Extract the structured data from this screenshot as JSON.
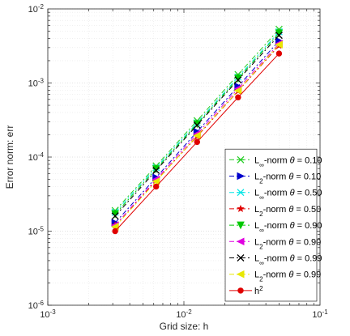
{
  "chart_data": {
    "type": "line",
    "xscale": "log",
    "yscale": "log",
    "xlim": [
      0.001,
      0.1
    ],
    "ylim": [
      1e-06,
      0.01
    ],
    "xlabel": "Grid size: h",
    "ylabel": "Error norm: err",
    "grid": true,
    "minor_grid": true,
    "legend_position": "bottom-right",
    "x_ticks": [
      {
        "value": 0.001,
        "base": "10",
        "exp": "-3"
      },
      {
        "value": 0.01,
        "base": "10",
        "exp": "-2"
      },
      {
        "value": 0.1,
        "base": "10",
        "exp": "-1"
      }
    ],
    "y_ticks": [
      {
        "value": 1e-06,
        "base": "10",
        "exp": "-6"
      },
      {
        "value": 1e-05,
        "base": "10",
        "exp": "-5"
      },
      {
        "value": 0.0001,
        "base": "10",
        "exp": "-4"
      },
      {
        "value": 0.001,
        "base": "10",
        "exp": "-3"
      },
      {
        "value": 0.01,
        "base": "10",
        "exp": "-2"
      }
    ],
    "x": [
      0.003125,
      0.00625,
      0.0125,
      0.025,
      0.05
    ],
    "series": [
      {
        "name": "L∞-norm θ = 0.10",
        "sub": "∞",
        "theta": "0.10",
        "color": "#22cc22",
        "dash": "6,3,2,3",
        "marker": "asterisk",
        "values": [
          1.9e-05,
          7.6e-05,
          0.00031,
          0.0013,
          0.0053
        ]
      },
      {
        "name": "L2-norm θ = 0.10",
        "sub": "2",
        "theta": "0.10",
        "color": "#0000cc",
        "dash": "6,3,2,3",
        "marker": "triangle-right",
        "values": [
          1.3e-05,
          5.3e-05,
          0.00022,
          0.0009,
          0.0037
        ]
      },
      {
        "name": "L∞-norm θ = 0.50",
        "sub": "∞",
        "theta": "0.50",
        "color": "#00e5e5",
        "dash": "6,3,2,3",
        "marker": "asterisk",
        "values": [
          1.8e-05,
          7.2e-05,
          0.00029,
          0.0012,
          0.0049
        ]
      },
      {
        "name": "L2-norm θ = 0.50",
        "sub": "2",
        "theta": "0.50",
        "color": "#e00000",
        "dash": "6,3,2,3",
        "marker": "star",
        "values": [
          1.2e-05,
          4.8e-05,
          0.00019,
          0.00078,
          0.0032
        ]
      },
      {
        "name": "L∞-norm θ = 0.90",
        "sub": "∞",
        "theta": "0.90",
        "color": "#00c800",
        "dash": "6,3,2,3",
        "marker": "triangle-down",
        "values": [
          1.7e-05,
          6.9e-05,
          0.00028,
          0.00115,
          0.0047
        ]
      },
      {
        "name": "L2-norm θ = 0.90",
        "sub": "2",
        "theta": "0.90",
        "color": "#e000e0",
        "dash": "6,3,2,3",
        "marker": "triangle-left",
        "values": [
          1.2e-05,
          5e-05,
          0.000205,
          0.00084,
          0.0034
        ]
      },
      {
        "name": "L∞-norm θ = 0.99",
        "sub": "∞",
        "theta": "0.99",
        "color": "#000000",
        "dash": "6,3,2,3",
        "marker": "x",
        "values": [
          1.6e-05,
          6.6e-05,
          0.00027,
          0.0011,
          0.0044
        ]
      },
      {
        "name": "L2-norm θ = 0.99",
        "sub": "2",
        "theta": "0.99",
        "color": "#e8e800",
        "dash": "6,3,2,3",
        "marker": "triangle-left",
        "values": [
          1.15e-05,
          4.7e-05,
          0.000195,
          0.00079,
          0.0033
        ]
      },
      {
        "name": "h2",
        "label_kind": "h2",
        "color": "#e00000",
        "dash": "",
        "marker": "circle",
        "values": [
          1e-05,
          4e-05,
          0.00016,
          0.00064,
          0.0025
        ]
      }
    ]
  }
}
